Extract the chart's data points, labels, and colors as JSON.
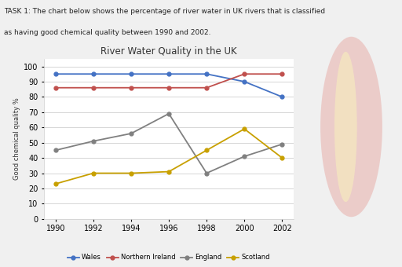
{
  "title": "River Water Quality in the UK",
  "ylabel": "Good chemical quality %",
  "header_line1": "TASK 1: The chart below shows the percentage of river water in UK rivers that is classified",
  "header_line2": "as having good chemical quality between 1990 and 2002.",
  "years": [
    1990,
    1992,
    1994,
    1996,
    1998,
    2000,
    2002
  ],
  "series": {
    "Wales": {
      "values": [
        95,
        95,
        95,
        95,
        95,
        90,
        80
      ],
      "color": "#4472C4",
      "marker": "o"
    },
    "Northern Ireland": {
      "values": [
        86,
        86,
        86,
        86,
        86,
        95,
        95
      ],
      "color": "#C0504D",
      "marker": "o"
    },
    "England": {
      "values": [
        45,
        51,
        56,
        69,
        30,
        41,
        49
      ],
      "color": "#808080",
      "marker": "o"
    },
    "Scotland": {
      "values": [
        23,
        30,
        30,
        31,
        45,
        59,
        40
      ],
      "color": "#C8A000",
      "marker": "o"
    }
  },
  "ylim": [
    0,
    105
  ],
  "yticks": [
    0,
    10,
    20,
    30,
    40,
    50,
    60,
    70,
    80,
    90,
    100
  ],
  "legend_order": [
    "Wales",
    "Northern Ireland",
    "England",
    "Scotland"
  ],
  "bg_color": "#e8e8e8",
  "panel_color": "#ffffff",
  "header_color": "#222222"
}
